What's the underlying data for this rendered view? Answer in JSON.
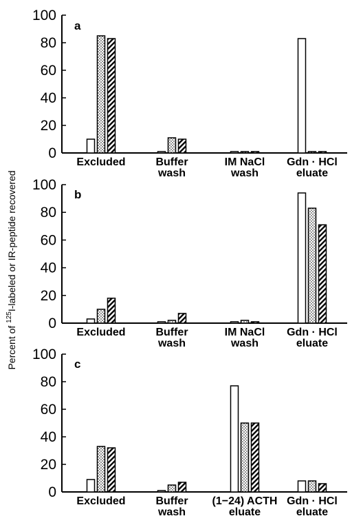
{
  "ylabel": {
    "prefix": "Percent of ",
    "superscript": "125",
    "suffix": "I-labeled or IR-peptide recovered"
  },
  "chart_data": [
    {
      "type": "bar",
      "panel": "a",
      "categories": [
        [
          "Excluded"
        ],
        [
          "Buffer",
          "wash"
        ],
        [
          "IM NaCl",
          "wash"
        ],
        [
          "Gdn · HCl",
          "eluate"
        ]
      ],
      "series": [
        {
          "values": [
            10,
            1,
            1,
            83
          ],
          "pattern": "open"
        },
        {
          "values": [
            85,
            11,
            1,
            1
          ],
          "pattern": "dotted"
        },
        {
          "values": [
            83,
            10,
            1,
            1
          ],
          "pattern": "hatched"
        }
      ],
      "ylim": [
        0,
        100
      ],
      "yticks": [
        0,
        20,
        40,
        60,
        80,
        100
      ]
    },
    {
      "type": "bar",
      "panel": "b",
      "categories": [
        [
          "Excluded"
        ],
        [
          "Buffer",
          "wash"
        ],
        [
          "IM NaCl",
          "wash"
        ],
        [
          "Gdn · HCl",
          "eluate"
        ]
      ],
      "series": [
        {
          "values": [
            3,
            1,
            1,
            94
          ],
          "pattern": "open"
        },
        {
          "values": [
            10,
            2,
            2,
            83
          ],
          "pattern": "dotted"
        },
        {
          "values": [
            18,
            7,
            1,
            71
          ],
          "pattern": "hatched"
        }
      ],
      "ylim": [
        0,
        100
      ],
      "yticks": [
        0,
        20,
        40,
        60,
        80,
        100
      ]
    },
    {
      "type": "bar",
      "panel": "c",
      "categories": [
        [
          "Excluded"
        ],
        [
          "Buffer",
          "wash"
        ],
        [
          "(1−24) ACTH",
          "eluate"
        ],
        [
          "Gdn · HCl",
          "eluate"
        ]
      ],
      "series": [
        {
          "values": [
            9,
            1,
            77,
            8
          ],
          "pattern": "open"
        },
        {
          "values": [
            33,
            5,
            50,
            8
          ],
          "pattern": "dotted"
        },
        {
          "values": [
            32,
            7,
            50,
            6
          ],
          "pattern": "hatched"
        }
      ],
      "ylim": [
        0,
        100
      ],
      "yticks": [
        0,
        20,
        40,
        60,
        80,
        100
      ]
    }
  ]
}
